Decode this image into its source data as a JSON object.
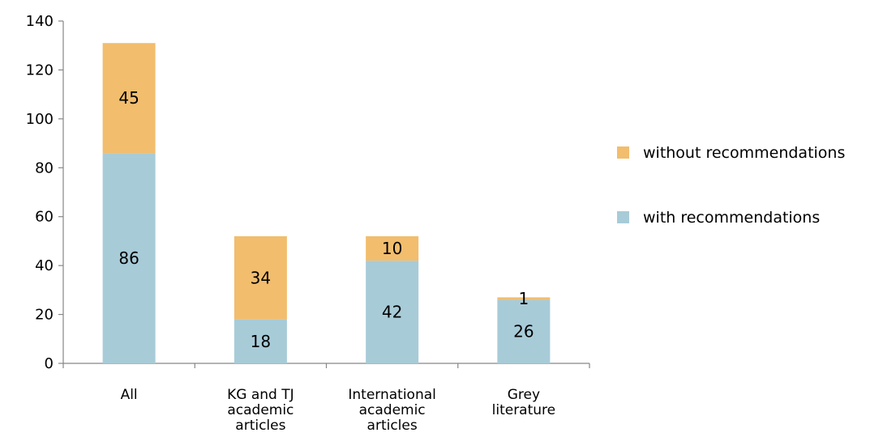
{
  "chart_data": {
    "type": "bar",
    "stacked": true,
    "categories": [
      [
        "All"
      ],
      [
        "KG and TJ",
        "academic",
        "articles"
      ],
      [
        "International",
        "academic",
        "articles"
      ],
      [
        "Grey",
        "literature"
      ]
    ],
    "series": [
      {
        "name": "with recommendations",
        "values": [
          86,
          18,
          42,
          26
        ],
        "color": "#a8cbd8"
      },
      {
        "name": "without recommendations",
        "values": [
          45,
          34,
          10,
          1
        ],
        "color": "#f2bd6d"
      }
    ],
    "ylim": [
      0,
      140
    ],
    "yticks": [
      0,
      20,
      40,
      60,
      80,
      100,
      120,
      140
    ],
    "legend_order": [
      "without recommendations",
      "with recommendations"
    ],
    "legend_position": "right",
    "grid": false
  }
}
